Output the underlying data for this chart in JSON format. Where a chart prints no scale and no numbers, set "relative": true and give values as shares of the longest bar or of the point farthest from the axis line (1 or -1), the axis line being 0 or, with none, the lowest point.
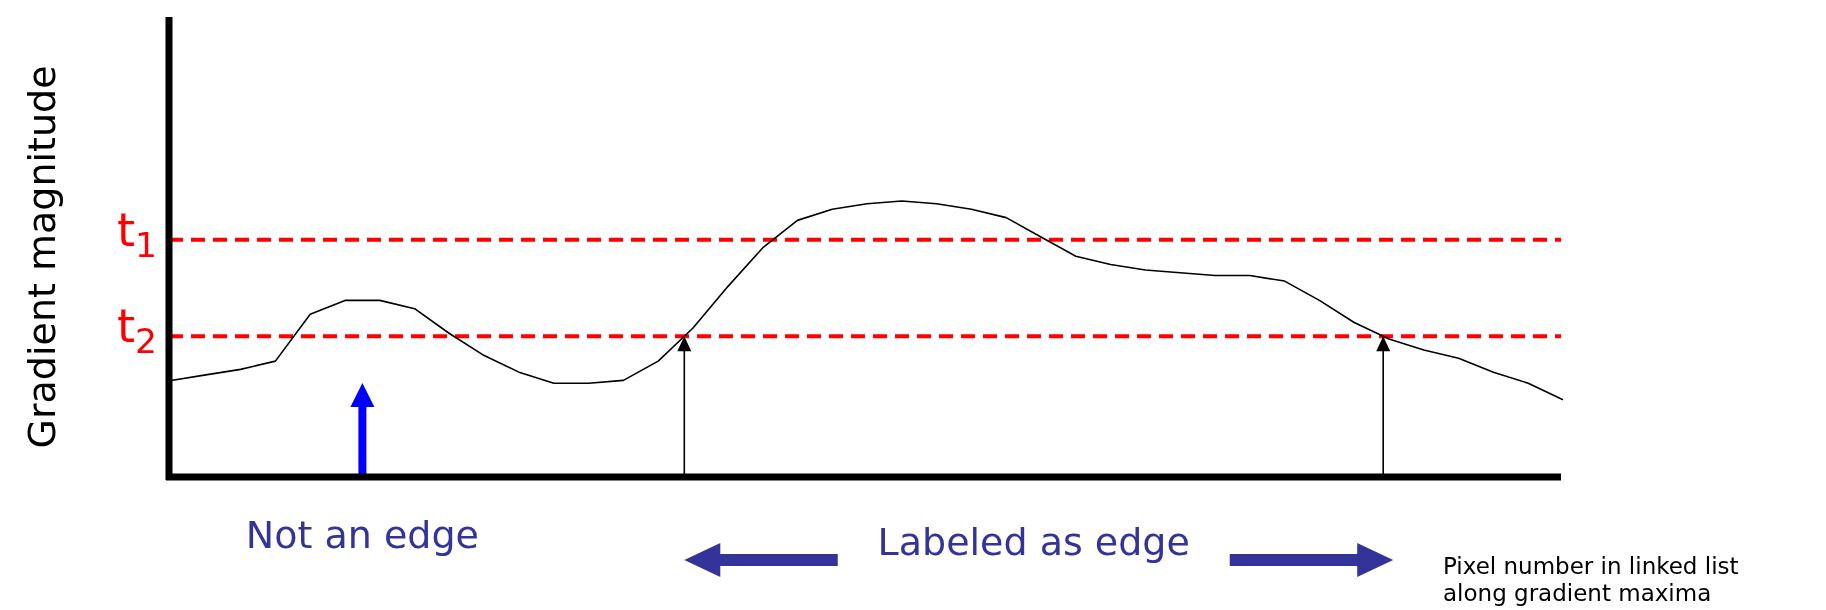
{
  "chart_data": {
    "type": "line",
    "relative": true,
    "ylabel": "Gradient magnitude",
    "xlabel": "Pixel number in linked list along gradient maxima",
    "categories": [
      null,
      null,
      null,
      null,
      null,
      null,
      null,
      null,
      null,
      null,
      null,
      null,
      null,
      null,
      null,
      null,
      null,
      null,
      null,
      null,
      null,
      null,
      null,
      null,
      null,
      null,
      null,
      null,
      null,
      null,
      null,
      null,
      null,
      null,
      null,
      null,
      null,
      null,
      null,
      null,
      null
    ],
    "series": [
      {
        "color": "#000000",
        "values": [
          0.35,
          0.37,
          0.39,
          0.42,
          0.59,
          0.64,
          0.64,
          0.61,
          0.52,
          0.44,
          0.38,
          0.34,
          0.34,
          0.35,
          0.42,
          0.54,
          0.69,
          0.83,
          0.93,
          0.97,
          0.99,
          1,
          0.99,
          0.97,
          0.94,
          0.87,
          0.8,
          0.77,
          0.75,
          0.74,
          0.73,
          0.73,
          0.71,
          0.64,
          0.56,
          0.5,
          0.46,
          0.43,
          0.38,
          0.34,
          0.28
        ]
      }
    ],
    "ref_lines": [
      {
        "axis": "y",
        "value": 0.86,
        "label": "t$_{1}$",
        "color": "#ff0000",
        "line_style": "dashed"
      },
      {
        "axis": "y",
        "value": 0.51,
        "label": "t$_{2}$",
        "color": "#ff0000",
        "line_style": "dashed"
      }
    ],
    "annotations": [
      "Not an edge",
      "Labeled as edge"
    ]
  }
}
